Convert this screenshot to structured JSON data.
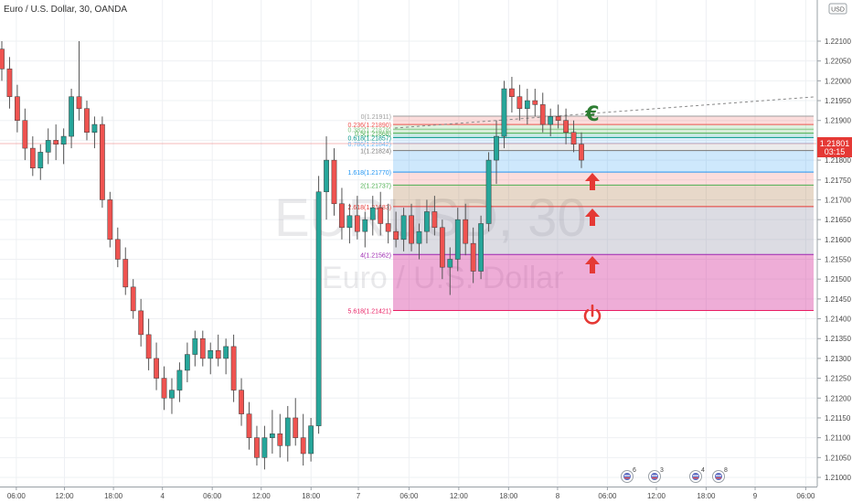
{
  "header": {
    "title": "Euro / U.S. Dollar, 30, OANDA",
    "currency": "USD"
  },
  "watermark": {
    "symbol": "EURUSD, 30",
    "name": "Euro / U.S. Dollar"
  },
  "price_tag": {
    "price": "1.21801",
    "countdown": "03:15",
    "color": "#e53935"
  },
  "colors": {
    "up": "#26a69a",
    "down": "#ef5350",
    "wick": "#555555"
  },
  "chart_data": {
    "type": "candlestick",
    "title": "Euro / U.S. Dollar, 30, OANDA",
    "ylim": [
      1.20955,
      1.22135
    ],
    "y_ticks": [
      "1.22100",
      "1.22050",
      "1.22000",
      "1.21950",
      "1.21900",
      "1.21850",
      "1.21800",
      "1.21750",
      "1.21700",
      "1.21650",
      "1.21600",
      "1.21550",
      "1.21500",
      "1.21450",
      "1.21400",
      "1.21350",
      "1.21300",
      "1.21250",
      "1.21200",
      "1.21150",
      "1.21100",
      "1.21050",
      "1.21000"
    ],
    "x_ticks": [
      {
        "label": "06:00",
        "pos": 0.02
      },
      {
        "label": "12:00",
        "pos": 0.079
      },
      {
        "label": "18:00",
        "pos": 0.139
      },
      {
        "label": "4",
        "pos": 0.199
      },
      {
        "label": "06:00",
        "pos": 0.26
      },
      {
        "label": "12:00",
        "pos": 0.32
      },
      {
        "label": "18:00",
        "pos": 0.381
      },
      {
        "label": "7",
        "pos": 0.439
      },
      {
        "label": "06:00",
        "pos": 0.501
      },
      {
        "label": "12:00",
        "pos": 0.562
      },
      {
        "label": "18:00",
        "pos": 0.623
      },
      {
        "label": "8",
        "pos": 0.683
      },
      {
        "label": "06:00",
        "pos": 0.744
      },
      {
        "label": "12:00",
        "pos": 0.804
      },
      {
        "label": "18:00",
        "pos": 0.865
      },
      {
        "label": "9",
        "pos": 0.925
      },
      {
        "label": "06:00",
        "pos": 0.987
      }
    ],
    "candles": [
      {
        "o": 1.2208,
        "h": 1.221,
        "l": 1.22,
        "c": 1.2203
      },
      {
        "o": 1.2203,
        "h": 1.2206,
        "l": 1.2193,
        "c": 1.2196
      },
      {
        "o": 1.2196,
        "h": 1.2199,
        "l": 1.2187,
        "c": 1.219
      },
      {
        "o": 1.219,
        "h": 1.2193,
        "l": 1.218,
        "c": 1.2183
      },
      {
        "o": 1.2183,
        "h": 1.2186,
        "l": 1.2176,
        "c": 1.2178
      },
      {
        "o": 1.2178,
        "h": 1.2184,
        "l": 1.2175,
        "c": 1.2182
      },
      {
        "o": 1.2182,
        "h": 1.2188,
        "l": 1.2179,
        "c": 1.2185
      },
      {
        "o": 1.2185,
        "h": 1.2189,
        "l": 1.218,
        "c": 1.2184
      },
      {
        "o": 1.2184,
        "h": 1.2188,
        "l": 1.2179,
        "c": 1.2186
      },
      {
        "o": 1.2186,
        "h": 1.2198,
        "l": 1.2183,
        "c": 1.2196
      },
      {
        "o": 1.2196,
        "h": 1.221,
        "l": 1.219,
        "c": 1.2193
      },
      {
        "o": 1.2193,
        "h": 1.2195,
        "l": 1.2185,
        "c": 1.2187
      },
      {
        "o": 1.2187,
        "h": 1.2191,
        "l": 1.2183,
        "c": 1.2189
      },
      {
        "o": 1.2189,
        "h": 1.2191,
        "l": 1.2168,
        "c": 1.217
      },
      {
        "o": 1.217,
        "h": 1.2172,
        "l": 1.2158,
        "c": 1.216
      },
      {
        "o": 1.216,
        "h": 1.2163,
        "l": 1.2153,
        "c": 1.2155
      },
      {
        "o": 1.2155,
        "h": 1.2158,
        "l": 1.2146,
        "c": 1.2148
      },
      {
        "o": 1.2148,
        "h": 1.215,
        "l": 1.214,
        "c": 1.2142
      },
      {
        "o": 1.2142,
        "h": 1.2145,
        "l": 1.2133,
        "c": 1.2136
      },
      {
        "o": 1.2136,
        "h": 1.214,
        "l": 1.2127,
        "c": 1.213
      },
      {
        "o": 1.213,
        "h": 1.2134,
        "l": 1.2122,
        "c": 1.2125
      },
      {
        "o": 1.2125,
        "h": 1.2128,
        "l": 1.2117,
        "c": 1.212
      },
      {
        "o": 1.212,
        "h": 1.2125,
        "l": 1.2116,
        "c": 1.2122
      },
      {
        "o": 1.2122,
        "h": 1.2129,
        "l": 1.2119,
        "c": 1.2127
      },
      {
        "o": 1.2127,
        "h": 1.2134,
        "l": 1.2124,
        "c": 1.2131
      },
      {
        "o": 1.2131,
        "h": 1.2137,
        "l": 1.2128,
        "c": 1.2135
      },
      {
        "o": 1.2135,
        "h": 1.2137,
        "l": 1.2128,
        "c": 1.213
      },
      {
        "o": 1.213,
        "h": 1.2134,
        "l": 1.2126,
        "c": 1.2132
      },
      {
        "o": 1.2132,
        "h": 1.2136,
        "l": 1.2128,
        "c": 1.213
      },
      {
        "o": 1.213,
        "h": 1.2135,
        "l": 1.2126,
        "c": 1.2133
      },
      {
        "o": 1.2133,
        "h": 1.2136,
        "l": 1.2119,
        "c": 1.2122
      },
      {
        "o": 1.2122,
        "h": 1.2125,
        "l": 1.2113,
        "c": 1.2116
      },
      {
        "o": 1.2116,
        "h": 1.2119,
        "l": 1.2107,
        "c": 1.211
      },
      {
        "o": 1.211,
        "h": 1.2113,
        "l": 1.2103,
        "c": 1.2105
      },
      {
        "o": 1.2105,
        "h": 1.2113,
        "l": 1.2102,
        "c": 1.211
      },
      {
        "o": 1.211,
        "h": 1.2117,
        "l": 1.2106,
        "c": 1.2111
      },
      {
        "o": 1.2111,
        "h": 1.2116,
        "l": 1.2105,
        "c": 1.2108
      },
      {
        "o": 1.2108,
        "h": 1.2118,
        "l": 1.2104,
        "c": 1.2115
      },
      {
        "o": 1.2115,
        "h": 1.212,
        "l": 1.2108,
        "c": 1.211
      },
      {
        "o": 1.211,
        "h": 1.2116,
        "l": 1.2103,
        "c": 1.2106
      },
      {
        "o": 1.2106,
        "h": 1.2115,
        "l": 1.2104,
        "c": 1.2113
      },
      {
        "o": 1.2113,
        "h": 1.2176,
        "l": 1.2111,
        "c": 1.2172
      },
      {
        "o": 1.2172,
        "h": 1.2186,
        "l": 1.2165,
        "c": 1.218
      },
      {
        "o": 1.218,
        "h": 1.2183,
        "l": 1.2166,
        "c": 1.2169
      },
      {
        "o": 1.2169,
        "h": 1.2173,
        "l": 1.216,
        "c": 1.2163
      },
      {
        "o": 1.2163,
        "h": 1.2169,
        "l": 1.2159,
        "c": 1.2166
      },
      {
        "o": 1.2166,
        "h": 1.2171,
        "l": 1.216,
        "c": 1.2162
      },
      {
        "o": 1.2162,
        "h": 1.2167,
        "l": 1.2158,
        "c": 1.2165
      },
      {
        "o": 1.2165,
        "h": 1.2171,
        "l": 1.2161,
        "c": 1.2168
      },
      {
        "o": 1.2168,
        "h": 1.2172,
        "l": 1.2161,
        "c": 1.2164
      },
      {
        "o": 1.2164,
        "h": 1.2169,
        "l": 1.2159,
        "c": 1.2162
      },
      {
        "o": 1.2162,
        "h": 1.2167,
        "l": 1.2158,
        "c": 1.216
      },
      {
        "o": 1.216,
        "h": 1.2168,
        "l": 1.2157,
        "c": 1.2166
      },
      {
        "o": 1.2166,
        "h": 1.2169,
        "l": 1.2157,
        "c": 1.2159
      },
      {
        "o": 1.2159,
        "h": 1.2164,
        "l": 1.2155,
        "c": 1.2162
      },
      {
        "o": 1.2162,
        "h": 1.217,
        "l": 1.2159,
        "c": 1.2167
      },
      {
        "o": 1.2167,
        "h": 1.2171,
        "l": 1.2161,
        "c": 1.2163
      },
      {
        "o": 1.2163,
        "h": 1.2165,
        "l": 1.215,
        "c": 1.2153
      },
      {
        "o": 1.2153,
        "h": 1.2158,
        "l": 1.2146,
        "c": 1.2155
      },
      {
        "o": 1.2155,
        "h": 1.2168,
        "l": 1.2152,
        "c": 1.2165
      },
      {
        "o": 1.2165,
        "h": 1.2169,
        "l": 1.2156,
        "c": 1.2159
      },
      {
        "o": 1.2159,
        "h": 1.2163,
        "l": 1.2149,
        "c": 1.2152
      },
      {
        "o": 1.2152,
        "h": 1.2166,
        "l": 1.215,
        "c": 1.2164
      },
      {
        "o": 1.2164,
        "h": 1.2182,
        "l": 1.2162,
        "c": 1.218
      },
      {
        "o": 1.218,
        "h": 1.219,
        "l": 1.2174,
        "c": 1.2186
      },
      {
        "o": 1.2186,
        "h": 1.22,
        "l": 1.2183,
        "c": 1.2198
      },
      {
        "o": 1.2198,
        "h": 1.2201,
        "l": 1.2192,
        "c": 1.2196
      },
      {
        "o": 1.2196,
        "h": 1.2199,
        "l": 1.219,
        "c": 1.2193
      },
      {
        "o": 1.2193,
        "h": 1.2198,
        "l": 1.2189,
        "c": 1.2195
      },
      {
        "o": 1.2195,
        "h": 1.2198,
        "l": 1.2191,
        "c": 1.2194
      },
      {
        "o": 1.2194,
        "h": 1.2197,
        "l": 1.2187,
        "c": 1.2189
      },
      {
        "o": 1.2189,
        "h": 1.2193,
        "l": 1.2186,
        "c": 1.2191
      },
      {
        "o": 1.2191,
        "h": 1.2194,
        "l": 1.2188,
        "c": 1.219
      },
      {
        "o": 1.219,
        "h": 1.2193,
        "l": 1.2184,
        "c": 1.2187
      },
      {
        "o": 1.2187,
        "h": 1.219,
        "l": 1.2182,
        "c": 1.2184
      },
      {
        "o": 1.2184,
        "h": 1.2187,
        "l": 1.2178,
        "c": 1.218
      }
    ],
    "fib_levels": [
      {
        "label": "0(1.21911)",
        "price": 1.21911,
        "color": "#9e9e9e",
        "fill": "rgba(239,83,80,0.20)"
      },
      {
        "label": "0.236(1.21890)",
        "price": 1.2189,
        "color": "#ef5350",
        "fill": "rgba(76,175,80,0.18)"
      },
      {
        "label": "0.382(1.21878)",
        "price": 1.21878,
        "color": "#81c784",
        "fill": "rgba(76,175,80,0.22)"
      },
      {
        "label": "0.5(1.21868)",
        "price": 1.21868,
        "color": "#4caf50",
        "fill": "rgba(0,150,136,0.20)"
      },
      {
        "label": "0.618(1.21857)",
        "price": 1.21857,
        "color": "#009688",
        "fill": "rgba(100,181,246,0.20)"
      },
      {
        "label": "0.786(1.21842)",
        "price": 1.21842,
        "color": "#64b5f6",
        "fill": "rgba(150,150,150,0.18)"
      },
      {
        "label": "1(1.21824)",
        "price": 1.21824,
        "color": "#787878",
        "fill": "rgba(33,150,243,0.22)"
      },
      {
        "label": "1.618(1.21770)",
        "price": 1.2177,
        "color": "#2196f3",
        "fill": "rgba(239,83,80,0.20)"
      },
      {
        "label": "2(1.21737)",
        "price": 1.21737,
        "color": "#4caf50",
        "fill": "rgba(160,100,40,0.25)"
      },
      {
        "label": "2.618(1.21683)",
        "price": 1.21683,
        "color": "#e53935",
        "fill": "rgba(150,150,170,0.33)"
      },
      {
        "label": "4(1.21562)",
        "price": 1.21562,
        "color": "#9c27b0",
        "fill": "rgba(214,60,160,0.42)"
      },
      {
        "label": "5.618(1.21421)",
        "price": 1.21421,
        "color": "#e91e63",
        "fill": null
      }
    ],
    "annotations": [
      {
        "type": "euro-icon",
        "price": 1.21915,
        "color": "#2e7d32"
      },
      {
        "type": "up-arrow-icon",
        "price": 1.21745,
        "color": "#e53935"
      },
      {
        "type": "up-arrow-icon",
        "price": 1.21655,
        "color": "#e53935"
      },
      {
        "type": "up-arrow-icon",
        "price": 1.21535,
        "color": "#e53935"
      },
      {
        "type": "power-icon",
        "price": 1.2141,
        "color": "#e53935"
      }
    ],
    "events": [
      {
        "count": "6"
      },
      {
        "count": "3"
      },
      {
        "count": "4"
      },
      {
        "count": "8"
      }
    ]
  }
}
